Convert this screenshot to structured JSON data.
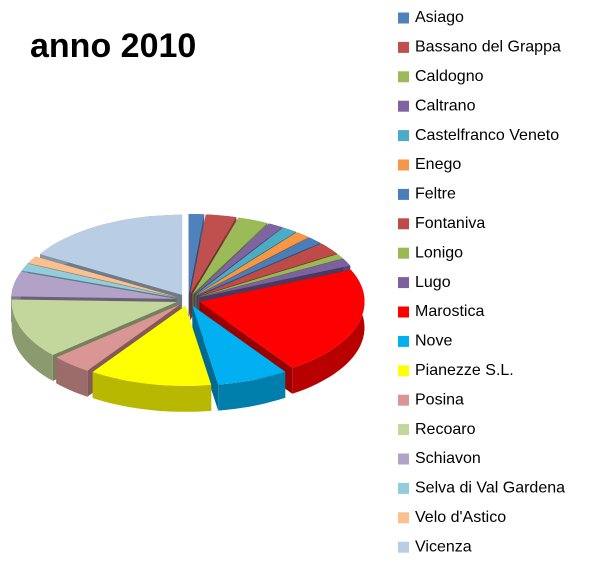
{
  "chart_data": {
    "type": "pie",
    "title": "anno 2010",
    "categories": [
      "Asiago",
      "Bassano del Grappa",
      "Caldogno",
      "Caltrano",
      "Castelfranco Veneto",
      "Enego",
      "Feltre",
      "Fontaniva",
      "Lonigo",
      "Lugo",
      "Marostica",
      "Nove",
      "Pianezze S.L.",
      "Posina",
      "Recoaro",
      "Schiavon",
      "Selva di Val Gardena",
      "Velo d'Astico",
      "Vicenza"
    ],
    "values": [
      1.5,
      3,
      3,
      1.5,
      1.5,
      1.5,
      1.5,
      2.5,
      1,
      1.5,
      22,
      7,
      12,
      4,
      12,
      5,
      1.5,
      1.5,
      16.5
    ],
    "colors": [
      "#4F81BD",
      "#C0504D",
      "#9BBB59",
      "#8064A2",
      "#4BACC6",
      "#F79646",
      "#4A7EBB",
      "#BE4B48",
      "#98B954",
      "#7D60A0",
      "#FF0000",
      "#00B0F0",
      "#FFFF00",
      "#D99694",
      "#C3D69B",
      "#B3A2C7",
      "#93CDDD",
      "#FAC090",
      "#B9CDE5"
    ]
  }
}
